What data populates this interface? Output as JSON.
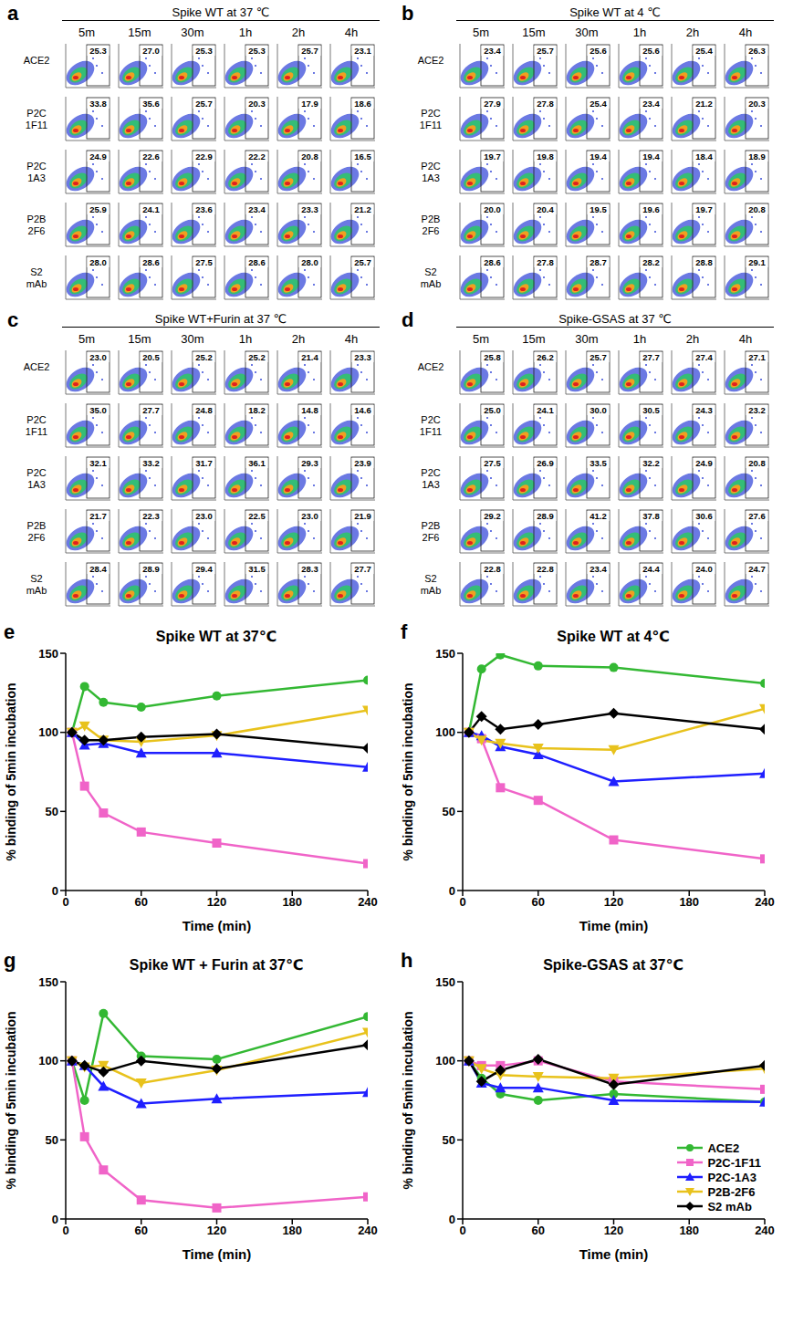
{
  "flow_panels": [
    {
      "label": "a",
      "title": "Spike WT at 37 ℃",
      "columns": [
        "5m",
        "15m",
        "30m",
        "1h",
        "2h",
        "4h"
      ],
      "rows": [
        {
          "name": "ACE2",
          "cells": [
            "25.3",
            "27.0",
            "25.3",
            "25.3",
            "25.7",
            "23.1"
          ]
        },
        {
          "name": "P2C 1F11",
          "cells": [
            "33.8",
            "35.6",
            "25.7",
            "20.3",
            "17.9",
            "18.6"
          ]
        },
        {
          "name": "P2C 1A3",
          "cells": [
            "24.9",
            "22.6",
            "22.9",
            "22.2",
            "20.8",
            "16.5"
          ]
        },
        {
          "name": "P2B 2F6",
          "cells": [
            "25.9",
            "24.1",
            "23.6",
            "23.4",
            "23.3",
            "21.2"
          ]
        },
        {
          "name": "S2 mAb",
          "cells": [
            "28.0",
            "28.6",
            "27.5",
            "28.6",
            "28.0",
            "25.7"
          ]
        }
      ]
    },
    {
      "label": "b",
      "title": "Spike WT at 4 ℃",
      "columns": [
        "5m",
        "15m",
        "30m",
        "1h",
        "2h",
        "4h"
      ],
      "rows": [
        {
          "name": "ACE2",
          "cells": [
            "23.4",
            "25.7",
            "25.6",
            "25.6",
            "25.4",
            "26.3"
          ]
        },
        {
          "name": "P2C 1F11",
          "cells": [
            "27.9",
            "27.8",
            "25.4",
            "23.4",
            "21.2",
            "20.3"
          ]
        },
        {
          "name": "P2C 1A3",
          "cells": [
            "19.7",
            "19.8",
            "19.4",
            "19.4",
            "18.4",
            "18.9"
          ]
        },
        {
          "name": "P2B 2F6",
          "cells": [
            "20.0",
            "20.4",
            "19.5",
            "19.6",
            "19.7",
            "20.8"
          ]
        },
        {
          "name": "S2 mAb",
          "cells": [
            "28.6",
            "27.8",
            "28.7",
            "28.2",
            "28.8",
            "29.1"
          ]
        }
      ]
    },
    {
      "label": "c",
      "title": "Spike WT+Furin at 37 ℃",
      "columns": [
        "5m",
        "15m",
        "30m",
        "1h",
        "2h",
        "4h"
      ],
      "rows": [
        {
          "name": "ACE2",
          "cells": [
            "23.0",
            "20.5",
            "25.2",
            "25.2",
            "21.4",
            "23.3"
          ]
        },
        {
          "name": "P2C 1F11",
          "cells": [
            "35.0",
            "27.7",
            "24.8",
            "18.2",
            "14.8",
            "14.6"
          ]
        },
        {
          "name": "P2C 1A3",
          "cells": [
            "32.1",
            "33.2",
            "31.7",
            "36.1",
            "29.3",
            "23.9"
          ]
        },
        {
          "name": "P2B 2F6",
          "cells": [
            "21.7",
            "22.3",
            "23.0",
            "22.5",
            "23.0",
            "21.9"
          ]
        },
        {
          "name": "S2 mAb",
          "cells": [
            "28.4",
            "28.9",
            "29.4",
            "31.5",
            "28.3",
            "27.7"
          ]
        }
      ]
    },
    {
      "label": "d",
      "title": "Spike-GSAS at 37 ℃",
      "columns": [
        "5m",
        "15m",
        "30m",
        "1h",
        "2h",
        "4h"
      ],
      "rows": [
        {
          "name": "ACE2",
          "cells": [
            "25.8",
            "26.2",
            "25.7",
            "27.7",
            "27.4",
            "27.1"
          ]
        },
        {
          "name": "P2C 1F11",
          "cells": [
            "25.0",
            "24.1",
            "30.0",
            "30.5",
            "24.3",
            "23.2"
          ]
        },
        {
          "name": "P2C 1A3",
          "cells": [
            "27.5",
            "26.9",
            "33.5",
            "32.2",
            "24.9",
            "20.8"
          ]
        },
        {
          "name": "P2B 2F6",
          "cells": [
            "29.2",
            "28.9",
            "41.2",
            "37.8",
            "30.6",
            "27.6"
          ]
        },
        {
          "name": "S2 mAb",
          "cells": [
            "22.8",
            "22.8",
            "23.4",
            "24.4",
            "24.0",
            "24.7"
          ]
        }
      ]
    }
  ],
  "chart_data": [
    {
      "label": "e",
      "type": "line",
      "title": "Spike WT at 37℃",
      "xlabel": "Time (min)",
      "ylabel": "% binding of 5min incubation",
      "x": [
        5,
        15,
        30,
        60,
        120,
        240
      ],
      "xlim": [
        0,
        240
      ],
      "xticks": [
        0,
        60,
        120,
        180,
        240
      ],
      "ylim": [
        0,
        150
      ],
      "yticks": [
        0,
        50,
        100,
        150
      ],
      "series": [
        {
          "name": "ACE2",
          "color": "#33b833",
          "marker": "circle",
          "values": [
            100,
            129,
            119,
            116,
            123,
            133
          ]
        },
        {
          "name": "P2C-1F11",
          "color": "#f064c8",
          "marker": "square",
          "values": [
            100,
            66,
            49,
            37,
            30,
            17
          ]
        },
        {
          "name": "P2C-1A3",
          "color": "#1f1fff",
          "marker": "triangle",
          "values": [
            100,
            92,
            93,
            87,
            87,
            78
          ]
        },
        {
          "name": "P2B-2F6",
          "color": "#e8c21c",
          "marker": "triangle-down",
          "values": [
            100,
            104,
            95,
            94,
            98,
            114
          ]
        },
        {
          "name": "S2 mAb",
          "color": "#000000",
          "marker": "diamond",
          "values": [
            100,
            95,
            95,
            97,
            99,
            90
          ]
        }
      ]
    },
    {
      "label": "f",
      "type": "line",
      "title": "Spike WT at 4℃",
      "xlabel": "Time (min)",
      "ylabel": "% binding of 5min incubation",
      "x": [
        5,
        15,
        30,
        60,
        120,
        240
      ],
      "xlim": [
        0,
        240
      ],
      "xticks": [
        0,
        60,
        120,
        180,
        240
      ],
      "ylim": [
        0,
        150
      ],
      "yticks": [
        0,
        50,
        100,
        150
      ],
      "series": [
        {
          "name": "ACE2",
          "color": "#33b833",
          "marker": "circle",
          "values": [
            100,
            140,
            149,
            142,
            141,
            131
          ]
        },
        {
          "name": "P2C-1F11",
          "color": "#f064c8",
          "marker": "square",
          "values": [
            100,
            96,
            65,
            57,
            32,
            20
          ]
        },
        {
          "name": "P2C-1A3",
          "color": "#1f1fff",
          "marker": "triangle",
          "values": [
            100,
            98,
            91,
            86,
            69,
            74
          ]
        },
        {
          "name": "P2B-2F6",
          "color": "#e8c21c",
          "marker": "triangle-down",
          "values": [
            100,
            95,
            93,
            90,
            89,
            115
          ]
        },
        {
          "name": "S2 mAb",
          "color": "#000000",
          "marker": "diamond",
          "values": [
            100,
            110,
            102,
            105,
            112,
            102
          ]
        }
      ]
    },
    {
      "label": "g",
      "type": "line",
      "title": "Spike WT + Furin at 37℃",
      "xlabel": "Time (min)",
      "ylabel": "% binding of 5min incubation",
      "x": [
        5,
        15,
        30,
        60,
        120,
        240
      ],
      "xlim": [
        0,
        240
      ],
      "xticks": [
        0,
        60,
        120,
        180,
        240
      ],
      "ylim": [
        0,
        150
      ],
      "yticks": [
        0,
        50,
        100,
        150
      ],
      "series": [
        {
          "name": "ACE2",
          "color": "#33b833",
          "marker": "circle",
          "values": [
            100,
            75,
            130,
            103,
            101,
            128
          ]
        },
        {
          "name": "P2C-1F11",
          "color": "#f064c8",
          "marker": "square",
          "values": [
            100,
            52,
            31,
            12,
            7,
            14
          ]
        },
        {
          "name": "P2C-1A3",
          "color": "#1f1fff",
          "marker": "triangle",
          "values": [
            100,
            97,
            84,
            73,
            76,
            80
          ]
        },
        {
          "name": "P2B-2F6",
          "color": "#e8c21c",
          "marker": "triangle-down",
          "values": [
            100,
            96,
            97,
            86,
            94,
            118
          ]
        },
        {
          "name": "S2 mAb",
          "color": "#000000",
          "marker": "diamond",
          "values": [
            100,
            97,
            93,
            100,
            95,
            110
          ]
        }
      ]
    },
    {
      "label": "h",
      "type": "line",
      "title": "Spike-GSAS at 37℃",
      "xlabel": "Time (min)",
      "ylabel": "% binding of 5min incubation",
      "x": [
        5,
        15,
        30,
        60,
        120,
        240
      ],
      "xlim": [
        0,
        240
      ],
      "xticks": [
        0,
        60,
        120,
        180,
        240
      ],
      "ylim": [
        0,
        150
      ],
      "yticks": [
        0,
        50,
        100,
        150
      ],
      "legend": "lower right",
      "series": [
        {
          "name": "ACE2",
          "color": "#33b833",
          "marker": "circle",
          "values": [
            100,
            89,
            79,
            75,
            79,
            74
          ]
        },
        {
          "name": "P2C-1F11",
          "color": "#f064c8",
          "marker": "square",
          "values": [
            100,
            97,
            97,
            100,
            87,
            82
          ]
        },
        {
          "name": "P2C-1A3",
          "color": "#1f1fff",
          "marker": "triangle",
          "values": [
            100,
            86,
            83,
            83,
            75,
            74
          ]
        },
        {
          "name": "P2B-2F6",
          "color": "#e8c21c",
          "marker": "triangle-down",
          "values": [
            100,
            95,
            91,
            90,
            89,
            95
          ]
        },
        {
          "name": "S2 mAb",
          "color": "#000000",
          "marker": "diamond",
          "values": [
            100,
            87,
            94,
            101,
            85,
            97
          ]
        }
      ]
    }
  ]
}
